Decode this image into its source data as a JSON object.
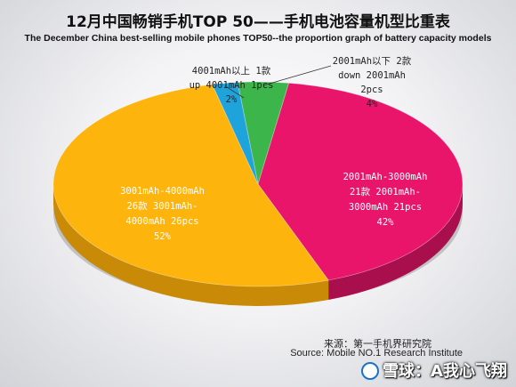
{
  "title_zh": "12月中国畅销手机TOP 50——手机电池容量机型比重表",
  "title_en": "The  December China best-selling mobile phones TOP50--the proportion graph of battery capacity models",
  "chart_data": {
    "type": "pie",
    "title": "12月中国畅销手机TOP 50——手机电池容量机型比重表",
    "subtitle": "The  December China best-selling mobile phones TOP50--the proportion graph of battery capacity models",
    "slices": [
      {
        "key": "down2001",
        "value": 2,
        "percent": 4,
        "color": "#3cb54a",
        "side_color": "#258a34",
        "label_lines": [
          "2001mAh以下 2款",
          "down 2001mAh",
          "2pcs",
          "4%"
        ]
      },
      {
        "key": "r2001to3000",
        "value": 21,
        "percent": 42,
        "color": "#e8156b",
        "side_color": "#a90f4d",
        "label_lines": [
          "2001mAh-3000mAh",
          "21款 2001mAh-",
          "3000mAh 21pcs",
          "42%"
        ]
      },
      {
        "key": "r3001to4000",
        "value": 26,
        "percent": 52,
        "color": "#fdb40d",
        "side_color": "#c98a07",
        "label_lines": [
          "3001mAh-4000mAh",
          "26款 3001mAh-",
          "4000mAh 26pcs",
          "52%"
        ]
      },
      {
        "key": "up4001",
        "value": 1,
        "percent": 2,
        "color": "#1fa3db",
        "side_color": "#157aa6",
        "label_lines": [
          "4001mAh以上 1款",
          "up 4001mAh 1pcs",
          "2%"
        ]
      }
    ]
  },
  "source_zh": "来源：第一手机界研究院",
  "source_en": "Source: Mobile NO.1  Research Institute",
  "watermark": "雪球：A我心飞翔"
}
